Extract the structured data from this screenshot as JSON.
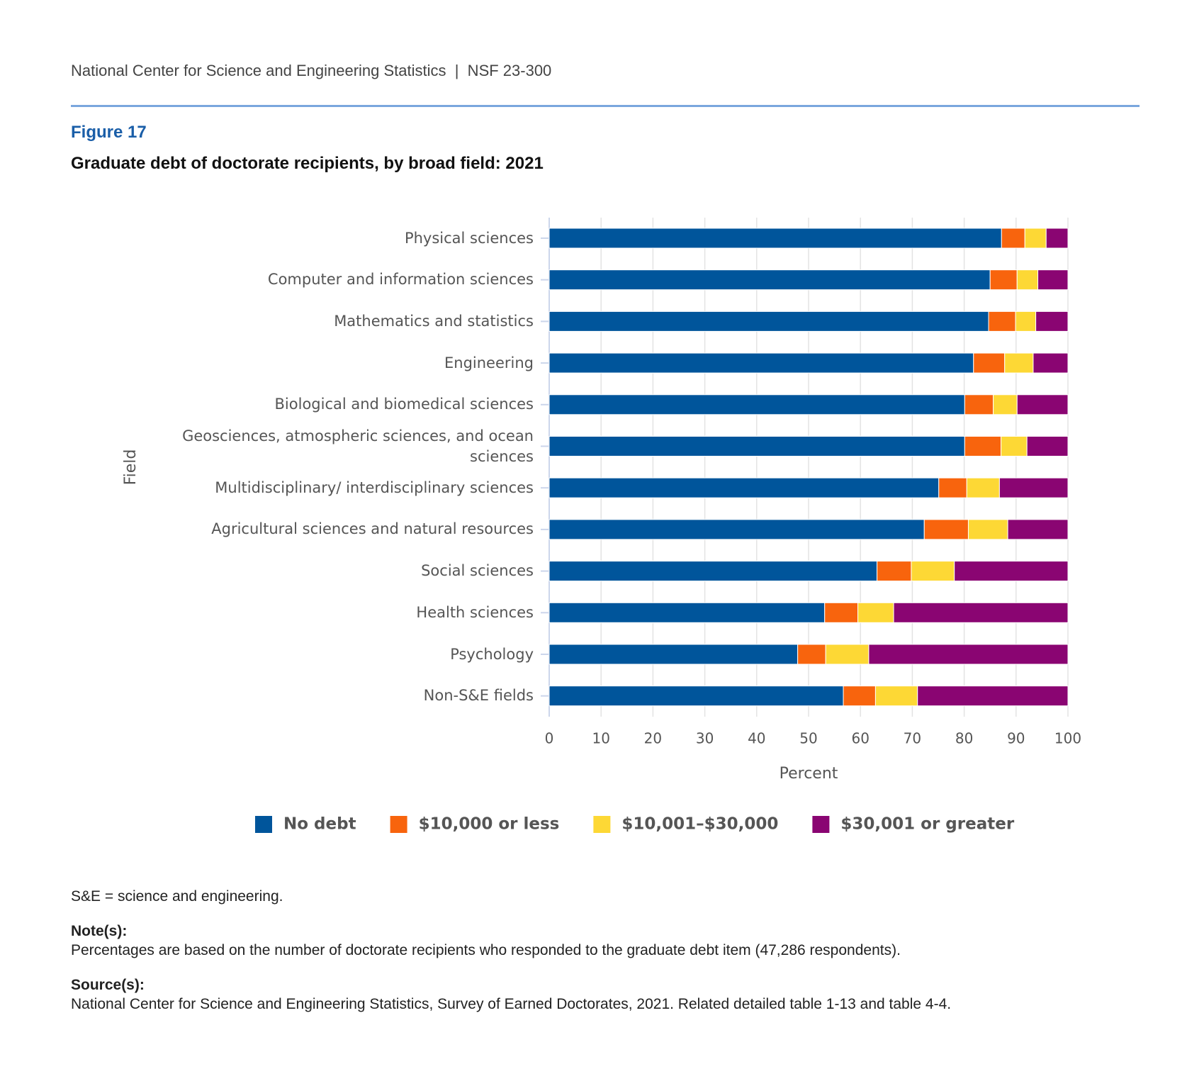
{
  "header": "National Center for Science and Engineering Statistics  |  NSF 23-300",
  "figure_label": "Figure 17",
  "chart_data": {
    "type": "stacked-bar-horizontal",
    "title": "Graduate debt of doctorate recipients, by broad field: 2021",
    "y_label": "Field",
    "x_label": "Percent",
    "categories": [
      "Physical sciences",
      "Computer and information sciences",
      "Mathematics and statistics",
      "Engineering",
      "Biological and biomedical sciences",
      "Geosciences, atmospheric sciences, and ocean sciences",
      "Multidisciplinary/ interdisciplinary sciences",
      "Agricultural sciences and natural resources",
      "Social sciences",
      "Health sciences",
      "Psychology",
      "Non-S&E fields"
    ],
    "series": [
      {
        "name": "No debt",
        "color": "#00559b",
        "values": [
          87.2,
          85.0,
          84.7,
          81.8,
          80.1,
          80.1,
          75.1,
          72.3,
          63.2,
          53.1,
          47.9,
          56.7
        ]
      },
      {
        "name": "$10,000 or less",
        "color": "#f8640d",
        "values": [
          4.5,
          5.2,
          5.2,
          6.0,
          5.5,
          7.0,
          5.4,
          8.5,
          6.6,
          6.4,
          5.4,
          6.2
        ]
      },
      {
        "name": "$10,001–$30,000",
        "color": "#fdd835",
        "values": [
          4.1,
          4.0,
          3.9,
          5.5,
          4.6,
          5.0,
          6.3,
          7.6,
          8.3,
          6.9,
          8.3,
          8.1
        ]
      },
      {
        "name": "$30,001 or greater",
        "color": "#8a0572",
        "values": [
          4.2,
          5.8,
          6.2,
          6.7,
          9.8,
          7.9,
          13.2,
          11.6,
          21.9,
          33.6,
          38.4,
          29.0
        ]
      }
    ],
    "xlim": [
      0,
      100
    ],
    "xticks": [
      0,
      10,
      20,
      30,
      40,
      50,
      60,
      70,
      80,
      90,
      100
    ],
    "grid": true,
    "legend": "bottom"
  },
  "notes": {
    "abbreviation": "S&E = science and engineering.",
    "note_label": "Note(s):",
    "note_text": "Percentages are based on the number of doctorate recipients who responded to the graduate debt item (47,286 respondents).",
    "source_label": "Source(s):",
    "source_text": "National Center for Science and Engineering Statistics, Survey of Earned Doctorates, 2021. Related detailed table 1-13 and table 4-4."
  }
}
